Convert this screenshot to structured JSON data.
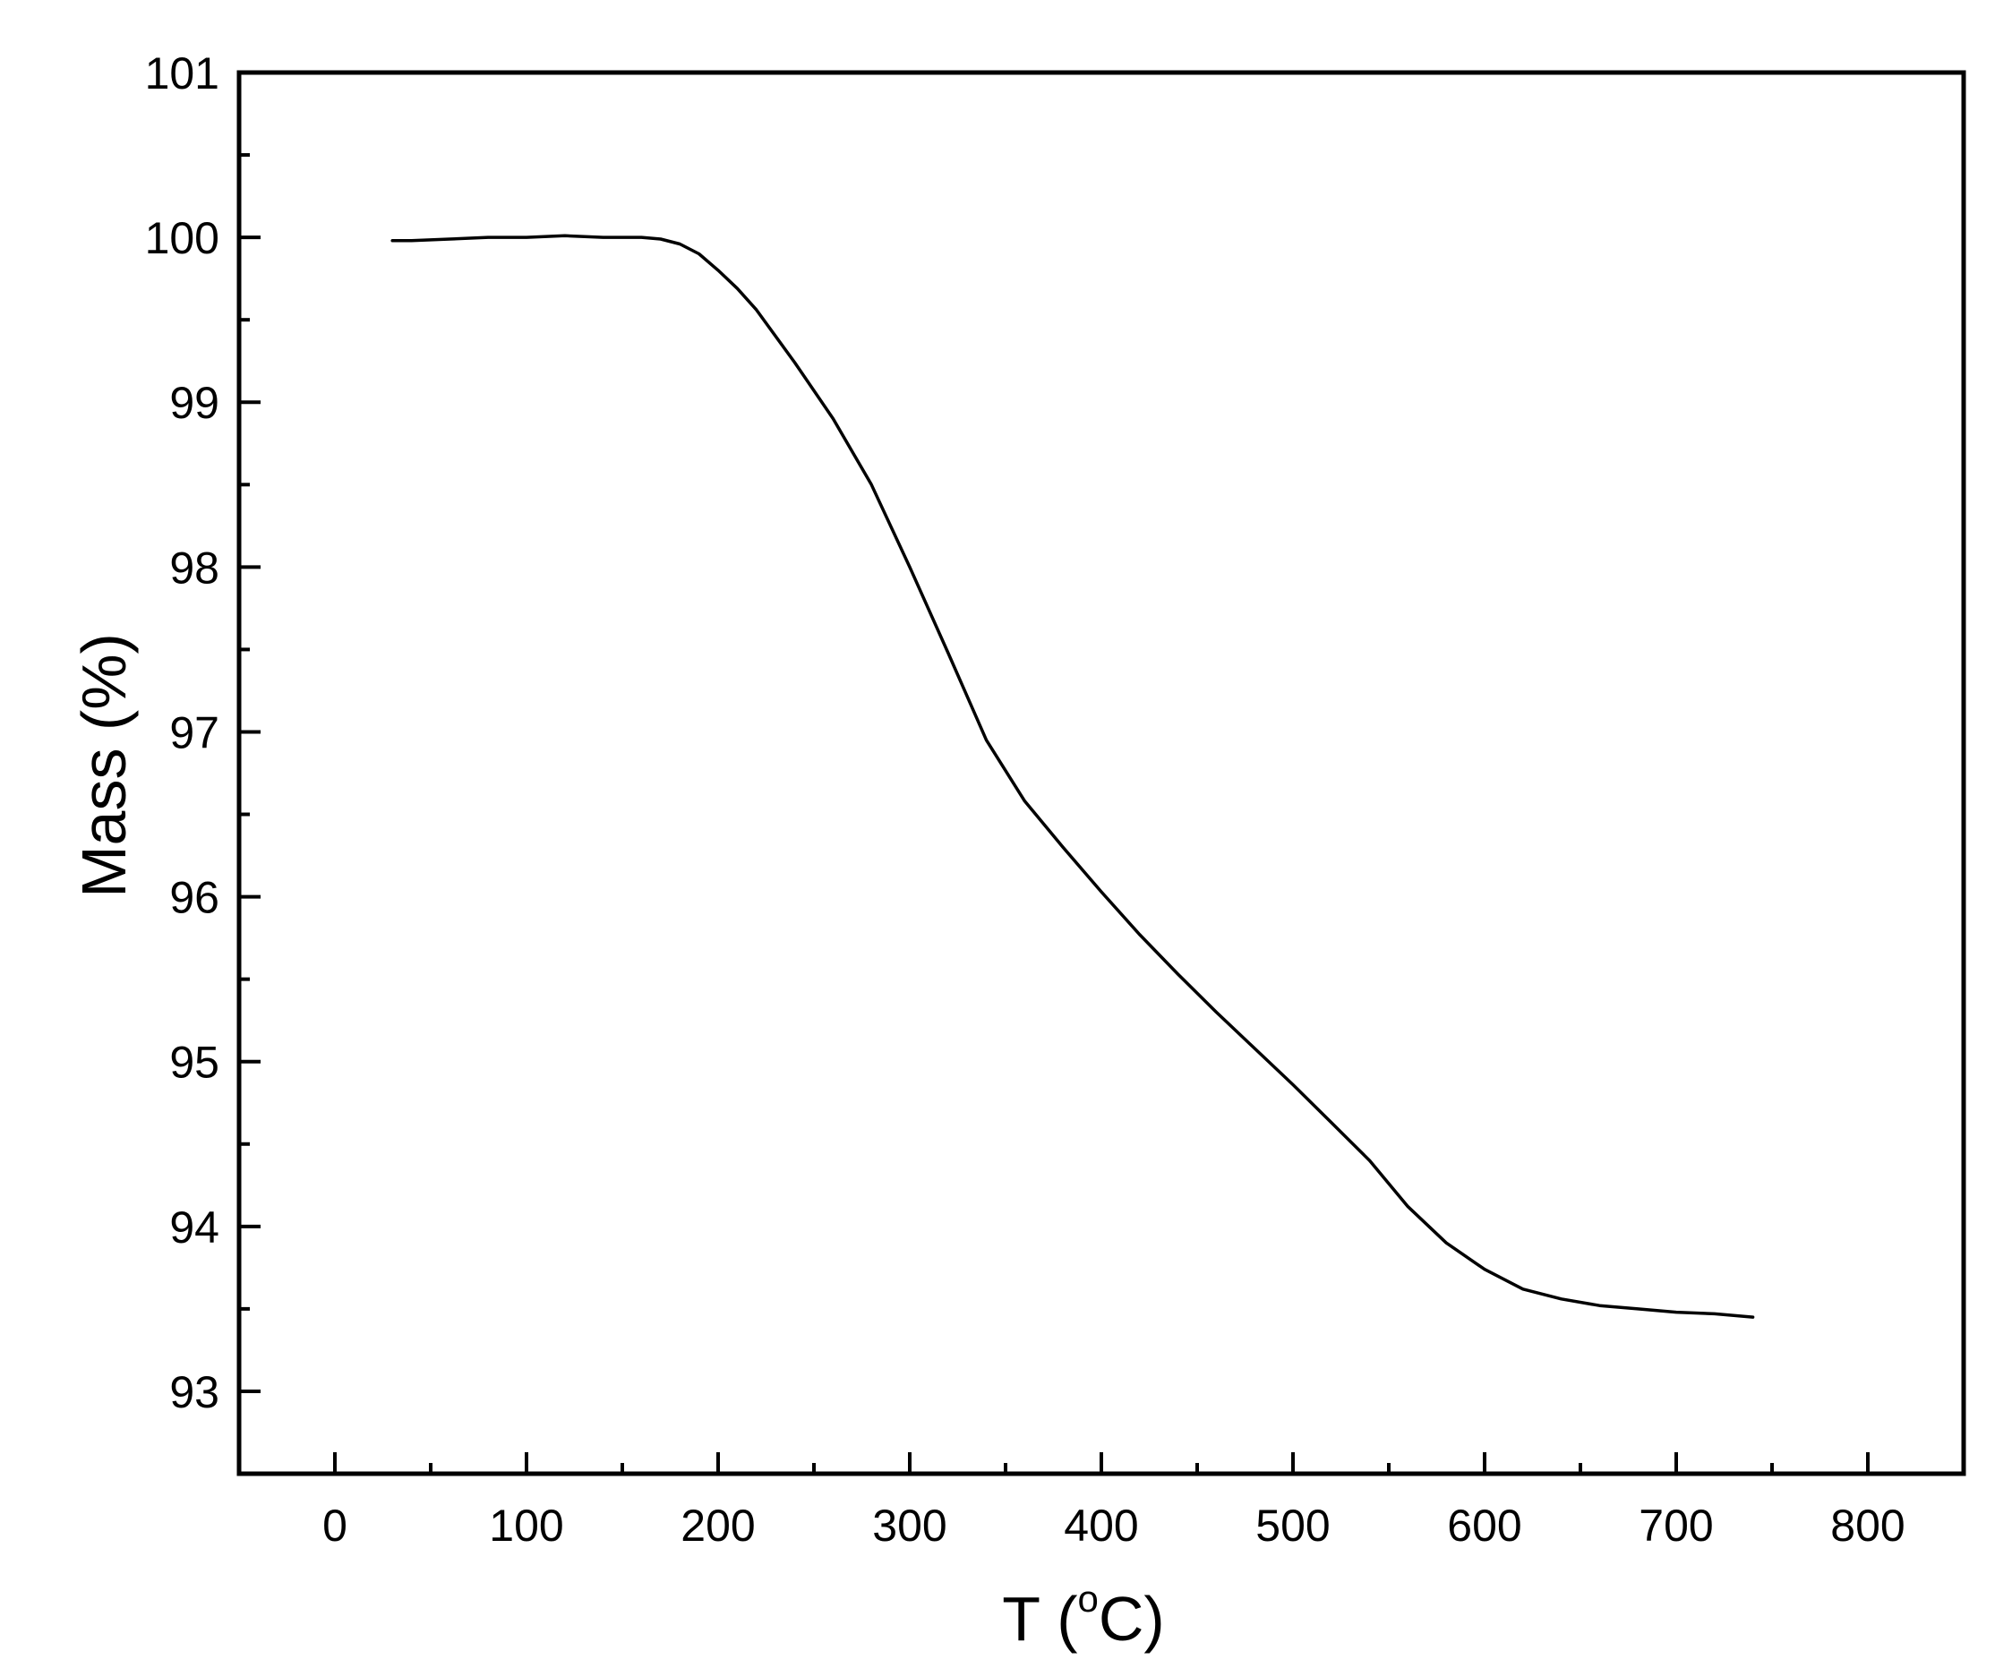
{
  "chart_data": {
    "type": "line",
    "title": "",
    "xlabel_main": "T (",
    "xlabel_sup": "o",
    "xlabel_tail": "C)",
    "ylabel": "Mass (%)",
    "xlim": [
      -50,
      850
    ],
    "ylim": [
      92.5,
      101
    ],
    "x_ticks": [
      0,
      100,
      200,
      300,
      400,
      500,
      600,
      700,
      800
    ],
    "x_tick_labels": [
      "0",
      "100",
      "200",
      "300",
      "400",
      "500",
      "600",
      "700",
      "800"
    ],
    "x_minor_ticks": [
      50,
      150,
      250,
      350,
      450,
      550,
      650,
      750
    ],
    "y_ticks": [
      93,
      94,
      95,
      96,
      97,
      98,
      99,
      100,
      101
    ],
    "y_tick_labels": [
      "93",
      "94",
      "95",
      "96",
      "97",
      "98",
      "99",
      "100",
      "101"
    ],
    "y_minor_ticks": [
      93.5,
      94.5,
      95.5,
      96.5,
      97.5,
      98.5,
      99.5,
      100.5
    ],
    "grid": false,
    "line_color": "#000000",
    "series": [
      {
        "x": [
          30,
          40,
          60,
          80,
          100,
          120,
          140,
          160,
          170,
          180,
          190,
          200,
          210,
          220,
          240,
          260,
          280,
          300,
          320,
          340,
          360,
          380,
          400,
          420,
          440,
          460,
          480,
          500,
          520,
          540,
          560,
          580,
          600,
          620,
          640,
          660,
          680,
          700,
          720,
          740
        ],
        "y": [
          99.98,
          99.98,
          99.99,
          100.0,
          100.0,
          100.01,
          100.0,
          100.0,
          99.99,
          99.96,
          99.9,
          99.8,
          99.69,
          99.56,
          99.24,
          98.9,
          98.5,
          98.0,
          97.48,
          96.95,
          96.58,
          96.3,
          96.03,
          95.77,
          95.53,
          95.3,
          95.08,
          94.86,
          94.63,
          94.4,
          94.12,
          93.9,
          93.74,
          93.62,
          93.56,
          93.52,
          93.5,
          93.48,
          93.47,
          93.45
        ]
      }
    ]
  }
}
